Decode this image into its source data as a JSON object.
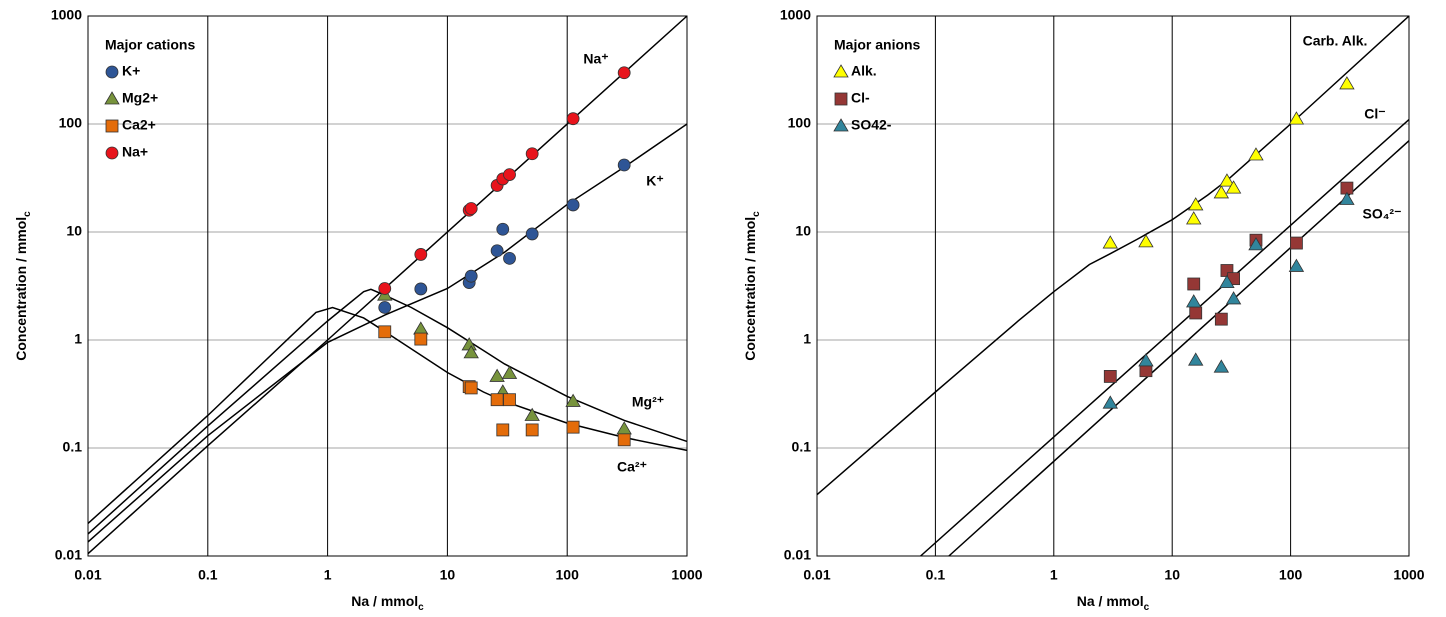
{
  "chart_data": [
    {
      "type": "scatter",
      "log_x": true,
      "log_y": true,
      "grid": true,
      "xlabel": "Na / mmol",
      "xlabel_sub": "c",
      "ylabel": "Concentration / mmol",
      "ylabel_sub": "c",
      "legend_title": "Major cations",
      "xlim": [
        0.01,
        1000
      ],
      "ylim": [
        0.01,
        1000
      ],
      "xticks": [
        0.01,
        0.1,
        1,
        10,
        100,
        1000
      ],
      "yticks": [
        0.01,
        0.1,
        1,
        10,
        100,
        1000
      ],
      "x": [
        3,
        6,
        15.2,
        15.8,
        26,
        29,
        33,
        51,
        112,
        299
      ],
      "series": [
        {
          "name": "K+",
          "color": "#2e5596",
          "marker": "circle",
          "values": [
            2.0,
            2.97,
            3.4,
            3.9,
            6.7,
            10.6,
            5.7,
            9.6,
            17.8,
            41.7
          ]
        },
        {
          "name": "Mg2+",
          "color": "#77933c",
          "marker": "triangle",
          "values": [
            2.6,
            1.26,
            0.9,
            0.76,
            0.46,
            0.33,
            0.49,
            0.2,
            0.27,
            0.15
          ]
        },
        {
          "name": "Ca2+",
          "color": "#e46c0a",
          "marker": "square",
          "values": [
            1.19,
            1.02,
            0.37,
            0.36,
            0.28,
            0.147,
            0.28,
            0.147,
            0.156,
            0.119
          ]
        },
        {
          "name": "Na+",
          "color": "#e8141c",
          "marker": "circle",
          "values": [
            3,
            6.2,
            15.9,
            16.5,
            27,
            31,
            34,
            53,
            112,
            298
          ]
        }
      ],
      "curves": [
        {
          "label": "Na⁺",
          "x": [
            0.01,
            0.1,
            1,
            3,
            1000
          ],
          "values": [
            0.0105,
            0.105,
            1.0,
            3,
            1000
          ]
        },
        {
          "label": "K⁺",
          "x": [
            0.01,
            0.1,
            1,
            3,
            10,
            30,
            100,
            300,
            1000
          ],
          "values": [
            0.0135,
            0.13,
            0.95,
            1.7,
            3,
            6.5,
            18,
            40,
            100
          ]
        },
        {
          "label": "Mg²⁺",
          "x": [
            0.01,
            0.1,
            1,
            2,
            2.3,
            3,
            5,
            10,
            20,
            30,
            100,
            300,
            1000
          ],
          "values": [
            0.016,
            0.16,
            1.5,
            2.8,
            2.95,
            2.6,
            2.0,
            1.3,
            0.8,
            0.6,
            0.3,
            0.18,
            0.115
          ]
        },
        {
          "label": "Ca²⁺",
          "x": [
            0.01,
            0.1,
            0.5,
            0.8,
            1.1,
            2,
            3,
            10,
            20,
            30,
            100,
            300,
            1000
          ],
          "values": [
            0.02,
            0.2,
            1.1,
            1.8,
            2.0,
            1.6,
            1.2,
            0.5,
            0.33,
            0.27,
            0.17,
            0.125,
            0.095
          ]
        }
      ]
    },
    {
      "type": "scatter",
      "log_x": true,
      "log_y": true,
      "grid": true,
      "xlabel": "Na / mmol",
      "xlabel_sub": "c",
      "ylabel": "Concentration / mmol",
      "ylabel_sub": "c",
      "legend_title": "Major anions",
      "xlim": [
        0.01,
        1000
      ],
      "ylim": [
        0.01,
        1000
      ],
      "xticks": [
        0.01,
        0.1,
        1,
        10,
        100,
        1000
      ],
      "yticks": [
        0.01,
        0.1,
        1,
        10,
        100,
        1000
      ],
      "x": [
        3,
        6,
        15.2,
        15.8,
        26,
        29,
        33,
        51,
        112,
        299
      ],
      "series": [
        {
          "name": "Alk.",
          "color": "#ffff00",
          "marker": "triangle",
          "values": [
            7.9,
            8.1,
            13.2,
            17.8,
            23,
            29.6,
            25.5,
            51.6,
            111,
            235
          ]
        },
        {
          "name": "Cl-",
          "color": "#953735",
          "marker": "square",
          "values": [
            0.46,
            0.52,
            3.3,
            1.78,
            1.56,
            4.4,
            3.7,
            8.4,
            7.9,
            25.5
          ]
        },
        {
          "name": "SO42-",
          "color": "#31859c",
          "marker": "triangle",
          "values": [
            0.26,
            0.64,
            2.25,
            0.65,
            0.56,
            3.4,
            2.4,
            7.6,
            4.8,
            20
          ]
        }
      ],
      "curves": [
        {
          "label": "Carb. Alk.",
          "x": [
            0.01,
            0.1,
            0.5,
            1,
            2,
            3,
            5,
            10,
            20,
            30,
            100,
            1000
          ],
          "values": [
            0.037,
            0.33,
            1.5,
            2.8,
            5,
            6.3,
            8.5,
            13,
            22,
            31,
            100,
            1000
          ]
        },
        {
          "label": "Cl⁻",
          "x": [
            0.075,
            1000
          ],
          "values": [
            0.01,
            110
          ]
        },
        {
          "label": "SO₄²⁻",
          "x": [
            0.13,
            1000
          ],
          "values": [
            0.01,
            70
          ]
        }
      ]
    }
  ]
}
